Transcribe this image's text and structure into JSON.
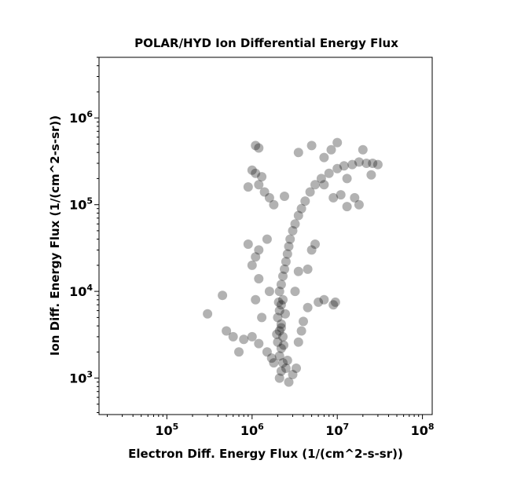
{
  "chart_data": {
    "type": "scatter",
    "title": "POLAR/HYD  Ion Differential Energy Flux",
    "xlabel": "Electron Diff. Energy Flux (1/(cm^2-s-sr))",
    "ylabel": "Ion Diff. Energy Flux (1/(cm^2-s-sr))",
    "x_scale": "log",
    "y_scale": "log",
    "xlim": [
      16000,
      130000000
    ],
    "ylim": [
      380,
      5000000
    ],
    "x_ticks": [
      {
        "value": 100000,
        "base": "10",
        "exp": "5"
      },
      {
        "value": 1000000,
        "base": "10",
        "exp": "6"
      },
      {
        "value": 10000000,
        "base": "10",
        "exp": "7"
      },
      {
        "value": 100000000,
        "base": "10",
        "exp": "8"
      }
    ],
    "y_ticks": [
      {
        "value": 1000,
        "base": "10",
        "exp": "3"
      },
      {
        "value": 10000,
        "base": "10",
        "exp": "4"
      },
      {
        "value": 100000,
        "base": "10",
        "exp": "5"
      },
      {
        "value": 1000000,
        "base": "10",
        "exp": "6"
      }
    ],
    "grid": false,
    "marker_color": "#000000",
    "marker_alpha": 0.3,
    "points": [
      [
        2100000,
        1000
      ],
      [
        2200000,
        1200
      ],
      [
        2300000,
        1500
      ],
      [
        2100000,
        1800
      ],
      [
        2200000,
        2200
      ],
      [
        2000000,
        2600
      ],
      [
        2300000,
        3000
      ],
      [
        2100000,
        3500
      ],
      [
        2200000,
        4200
      ],
      [
        2000000,
        5000
      ],
      [
        2100000,
        6000
      ],
      [
        2200000,
        7000
      ],
      [
        2300000,
        8000
      ],
      [
        2100000,
        10000
      ],
      [
        2200000,
        12000
      ],
      [
        2300000,
        15000
      ],
      [
        2400000,
        18000
      ],
      [
        2500000,
        22000
      ],
      [
        2600000,
        27000
      ],
      [
        2700000,
        33000
      ],
      [
        2800000,
        40000
      ],
      [
        3000000,
        50000
      ],
      [
        3200000,
        60000
      ],
      [
        3500000,
        75000
      ],
      [
        3800000,
        90000
      ],
      [
        4200000,
        110000
      ],
      [
        2400000,
        125000
      ],
      [
        4800000,
        140000
      ],
      [
        5500000,
        170000
      ],
      [
        6500000,
        200000
      ],
      [
        8000000,
        230000
      ],
      [
        10000000,
        260000
      ],
      [
        12000000,
        280000
      ],
      [
        15000000,
        290000
      ],
      [
        18000000,
        310000
      ],
      [
        22000000,
        300000
      ],
      [
        26000000,
        300000
      ],
      [
        30000000,
        290000
      ],
      [
        9000000,
        120000
      ],
      [
        11000000,
        130000
      ],
      [
        13000000,
        200000
      ],
      [
        7000000,
        170000
      ],
      [
        1000000,
        3000
      ],
      [
        1200000,
        2500
      ],
      [
        800000,
        2800
      ],
      [
        600000,
        3000
      ],
      [
        500000,
        3500
      ],
      [
        700000,
        2000
      ],
      [
        1500000,
        2000
      ],
      [
        1800000,
        1500
      ],
      [
        2500000,
        1300
      ],
      [
        3000000,
        1100
      ],
      [
        2700000,
        900
      ],
      [
        3500000,
        2600
      ],
      [
        3800000,
        3500
      ],
      [
        4000000,
        4500
      ],
      [
        1300000,
        5000
      ],
      [
        1100000,
        8000
      ],
      [
        1600000,
        10000
      ],
      [
        1200000,
        14000
      ],
      [
        1000000,
        20000
      ],
      [
        1100000,
        25000
      ],
      [
        1200000,
        30000
      ],
      [
        900000,
        35000
      ],
      [
        1500000,
        40000
      ],
      [
        1100000,
        230000
      ],
      [
        1000000,
        250000
      ],
      [
        900000,
        160000
      ],
      [
        1100000,
        480000
      ],
      [
        1200000,
        450000
      ],
      [
        1300000,
        210000
      ],
      [
        1200000,
        170000
      ],
      [
        1400000,
        140000
      ],
      [
        1600000,
        120000
      ],
      [
        1800000,
        100000
      ],
      [
        4500000,
        18000
      ],
      [
        5000000,
        30000
      ],
      [
        5500000,
        35000
      ],
      [
        3500000,
        17000
      ],
      [
        3200000,
        10000
      ],
      [
        6000000,
        7500
      ],
      [
        7000000,
        8000
      ],
      [
        9000000,
        7000
      ],
      [
        9500000,
        7500
      ],
      [
        4500000,
        6500
      ],
      [
        300000,
        5500
      ],
      [
        450000,
        9000
      ],
      [
        5000000,
        480000
      ],
      [
        3500000,
        400000
      ],
      [
        8500000,
        430000
      ],
      [
        10000000,
        520000
      ],
      [
        7000000,
        350000
      ],
      [
        20000000,
        430000
      ],
      [
        16000000,
        120000
      ],
      [
        18000000,
        100000
      ],
      [
        25000000,
        220000
      ],
      [
        13000000,
        95000
      ],
      [
        1700000,
        1700
      ],
      [
        2600000,
        1600
      ],
      [
        3300000,
        1300
      ],
      [
        2200000,
        3800
      ],
      [
        2350000,
        2400
      ],
      [
        1950000,
        3200
      ],
      [
        2450000,
        5500
      ],
      [
        2050000,
        7500
      ]
    ]
  }
}
